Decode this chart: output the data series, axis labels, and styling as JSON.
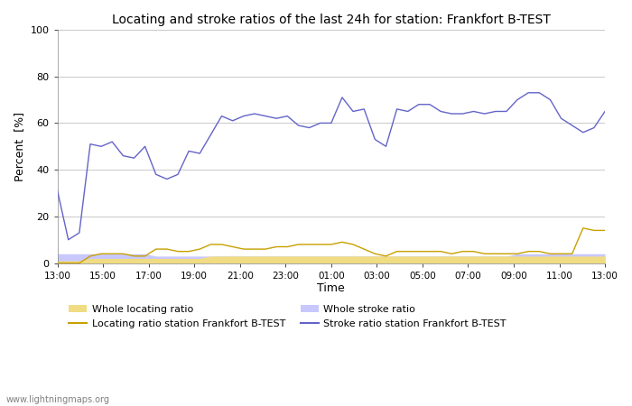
{
  "title": "Locating and stroke ratios of the last 24h for station: Frankfort B-TEST",
  "xlabel": "Time",
  "ylabel": "Percent  [%]",
  "ylim": [
    0,
    100
  ],
  "yticks": [
    0,
    20,
    40,
    60,
    80,
    100
  ],
  "background_color": "#ffffff",
  "plot_bg_color": "#ffffff",
  "watermark": "www.lightningmaps.org",
  "xtick_labels": [
    "13:00",
    "15:00",
    "17:00",
    "19:00",
    "21:00",
    "23:00",
    "01:00",
    "03:00",
    "05:00",
    "07:00",
    "09:00",
    "11:00",
    "13:00"
  ],
  "legend": {
    "whole_locating_label": "Whole locating ratio",
    "locating_station_label": "Locating ratio station Frankfort B-TEST",
    "whole_stroke_label": "Whole stroke ratio",
    "stroke_station_label": "Stroke ratio station Frankfort B-TEST"
  },
  "colors": {
    "whole_locating_fill": "#f0dc82",
    "locating_line": "#c8a000",
    "whole_stroke_fill": "#c8c8ff",
    "stroke_line": "#6464c8"
  },
  "stroke_station": [
    31,
    10,
    13,
    51,
    50,
    52,
    46,
    45,
    50,
    38,
    36,
    38,
    48,
    47,
    55,
    63,
    61,
    63,
    64,
    63,
    62,
    63,
    59,
    58,
    60,
    60,
    71,
    65,
    66,
    53,
    50,
    66,
    65,
    68,
    68,
    65,
    64,
    64,
    65,
    64,
    65,
    65,
    70,
    73,
    73,
    70,
    62,
    59,
    56,
    58,
    65
  ],
  "locating_station": [
    0,
    0,
    0,
    3,
    4,
    4,
    4,
    3,
    3,
    6,
    6,
    5,
    5,
    6,
    8,
    8,
    7,
    6,
    6,
    6,
    7,
    7,
    8,
    8,
    8,
    8,
    9,
    8,
    6,
    4,
    3,
    5,
    5,
    5,
    5,
    5,
    4,
    5,
    5,
    4,
    4,
    4,
    4,
    5,
    5,
    4,
    4,
    4,
    15,
    14,
    14
  ],
  "whole_stroke": [
    4,
    4,
    4,
    4,
    4,
    4,
    4,
    4,
    4,
    3,
    3,
    3,
    3,
    3,
    3,
    3,
    3,
    3,
    3,
    3,
    3,
    3,
    3,
    3,
    3,
    3,
    3,
    3,
    3,
    3,
    3,
    3,
    3,
    3,
    3,
    3,
    3,
    3,
    3,
    3,
    3,
    3,
    4,
    4,
    4,
    4,
    4,
    4,
    4,
    4,
    4
  ],
  "whole_locating": [
    1,
    1,
    1,
    2,
    2,
    2,
    2,
    2,
    2,
    2,
    2,
    2,
    2,
    2,
    3,
    3,
    3,
    3,
    3,
    3,
    3,
    3,
    3,
    3,
    3,
    3,
    3,
    3,
    3,
    3,
    3,
    3,
    3,
    3,
    3,
    3,
    3,
    3,
    3,
    3,
    3,
    3,
    3,
    3,
    3,
    3,
    3,
    3,
    3,
    3,
    3
  ]
}
